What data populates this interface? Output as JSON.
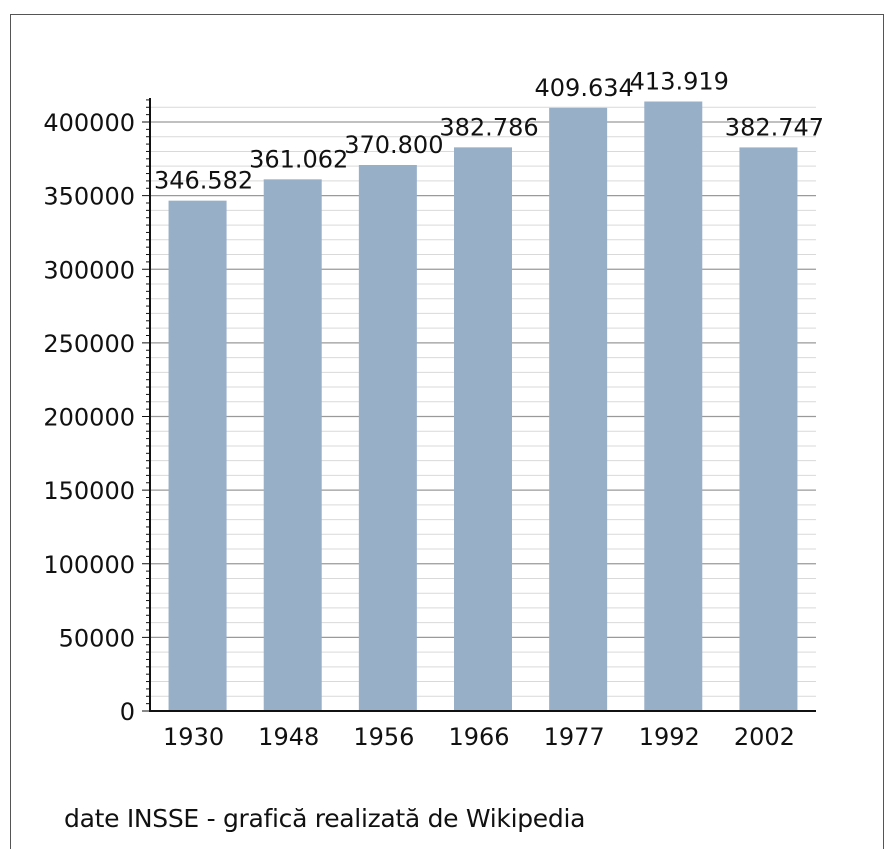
{
  "chart_data": {
    "type": "bar",
    "categories": [
      "1930",
      "1948",
      "1956",
      "1966",
      "1977",
      "1992",
      "2002"
    ],
    "values": [
      346582,
      361062,
      370800,
      382786,
      409634,
      413919,
      382747
    ],
    "value_labels": [
      "346.582",
      "361.062",
      "370.800",
      "382.786",
      "409.634",
      "413.919",
      "382.747"
    ],
    "y_ticks": [
      0,
      50000,
      100000,
      150000,
      200000,
      250000,
      300000,
      350000,
      400000
    ],
    "y_tick_labels": [
      "0",
      "50000",
      "100000",
      "150000",
      "200000",
      "250000",
      "300000",
      "350000",
      "400000"
    ],
    "ylim": [
      0,
      415000
    ],
    "grid": true,
    "bar_color": "#98afc8",
    "title": "",
    "xlabel": "",
    "ylabel": ""
  },
  "footer": {
    "source": "date INSSE - grafică realizată de Wikipedia"
  }
}
